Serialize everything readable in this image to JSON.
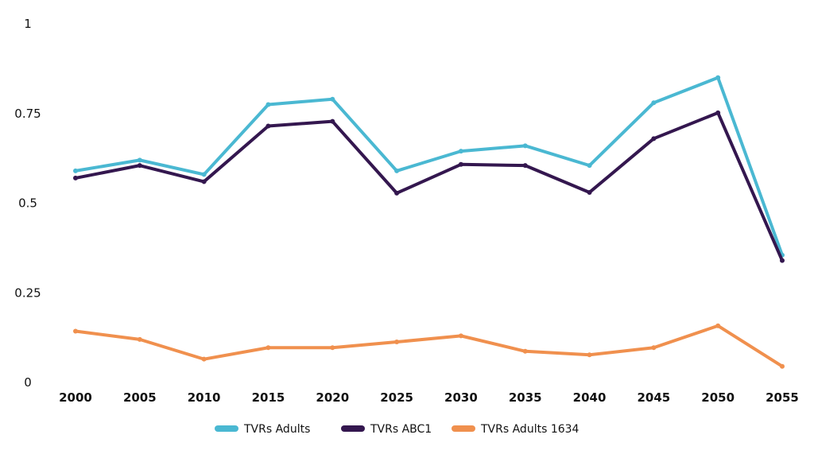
{
  "chart_data": {
    "type": "line",
    "title": "",
    "xlabel": "",
    "ylabel": "",
    "categories": [
      "2000",
      "2005",
      "2010",
      "2015",
      "2020",
      "2025",
      "2030",
      "2035",
      "2040",
      "2045",
      "2050",
      "2055"
    ],
    "ylim": [
      0,
      1
    ],
    "yticks": [
      "0",
      "0.25",
      "0.5",
      "0.75",
      "1"
    ],
    "grid": false,
    "legend_position": "bottom",
    "series": [
      {
        "name": "TVRs Adults",
        "color": "#4ab8d2",
        "values": [
          0.59,
          0.62,
          0.58,
          0.775,
          0.79,
          0.59,
          0.645,
          0.66,
          0.605,
          0.78,
          0.85,
          0.355
        ]
      },
      {
        "name": "TVRs ABC1",
        "color": "#34174f",
        "values": [
          0.57,
          0.605,
          0.56,
          0.715,
          0.728,
          0.528,
          0.608,
          0.605,
          0.53,
          0.68,
          0.752,
          0.34
        ]
      },
      {
        "name": "TVRs Adults 1634",
        "color": "#f0904e",
        "values": [
          0.143,
          0.12,
          0.065,
          0.097,
          0.097,
          0.113,
          0.13,
          0.087,
          0.077,
          0.097,
          0.158,
          0.045
        ]
      }
    ]
  }
}
